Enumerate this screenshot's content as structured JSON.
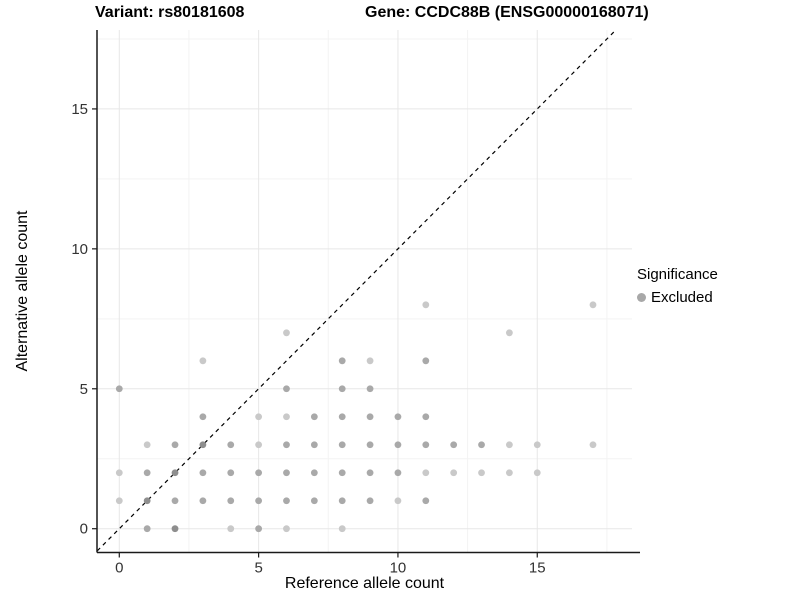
{
  "chart_data": {
    "type": "scatter",
    "titles": {
      "left": "Variant: rs80181608",
      "right": "Gene: CCDC88B (ENSG00000168071)"
    },
    "xlabel": "Reference allele count",
    "ylabel": "Alternative allele count",
    "xlim": [
      -0.8,
      18.4
    ],
    "ylim": [
      -0.85,
      17.82
    ],
    "xticks": [
      0,
      5,
      10,
      15
    ],
    "yticks": [
      0,
      5,
      10,
      15
    ],
    "xminor": [
      2.5,
      7.5,
      12.5,
      17.5
    ],
    "yminor": [
      2.5,
      7.5,
      12.5,
      17.5
    ],
    "grid": {
      "major_color": "#e7e7e7",
      "minor_color": "#f3f3f3"
    },
    "axis_color": "#1a1a1a",
    "tick_label_color": "#333333",
    "identity_line": {
      "style": "dashed",
      "color": "#000000",
      "from": [
        -0.79,
        -0.79
      ],
      "to": [
        17.82,
        17.82
      ]
    },
    "legend": {
      "title": "Significance",
      "entries": [
        {
          "label": "Excluded",
          "color": "#a8a8a8"
        }
      ]
    },
    "point_colors": {
      "1": "#c9c9c9",
      "2": "#a9a9a9",
      "3": "#8e8e8e"
    },
    "point_radius": 3.4,
    "series": [
      {
        "name": "Excluded",
        "points": [
          [
            1,
            0,
            2
          ],
          [
            2,
            0,
            3
          ],
          [
            4,
            0,
            1
          ],
          [
            5,
            0,
            2
          ],
          [
            6,
            0,
            1
          ],
          [
            8,
            0,
            1
          ],
          [
            0,
            1,
            1
          ],
          [
            1,
            1,
            3
          ],
          [
            2,
            1,
            2
          ],
          [
            3,
            1,
            2
          ],
          [
            4,
            1,
            2
          ],
          [
            5,
            1,
            2
          ],
          [
            6,
            1,
            2
          ],
          [
            7,
            1,
            2
          ],
          [
            8,
            1,
            2
          ],
          [
            9,
            1,
            2
          ],
          [
            10,
            1,
            1
          ],
          [
            11,
            1,
            2
          ],
          [
            0,
            2,
            1
          ],
          [
            1,
            2,
            2
          ],
          [
            2,
            2,
            3
          ],
          [
            3,
            2,
            2
          ],
          [
            4,
            2,
            2
          ],
          [
            5,
            2,
            2
          ],
          [
            6,
            2,
            2
          ],
          [
            7,
            2,
            2
          ],
          [
            8,
            2,
            2
          ],
          [
            9,
            2,
            2
          ],
          [
            10,
            2,
            2
          ],
          [
            11,
            2,
            1
          ],
          [
            12,
            2,
            1
          ],
          [
            13,
            2,
            1
          ],
          [
            14,
            2,
            1
          ],
          [
            15,
            2,
            1
          ],
          [
            1,
            3,
            1
          ],
          [
            2,
            3,
            2
          ],
          [
            3,
            3,
            3
          ],
          [
            4,
            3,
            2
          ],
          [
            5,
            3,
            1
          ],
          [
            6,
            3,
            2
          ],
          [
            7,
            3,
            2
          ],
          [
            8,
            3,
            2
          ],
          [
            9,
            3,
            2
          ],
          [
            10,
            3,
            2
          ],
          [
            11,
            3,
            2
          ],
          [
            12,
            3,
            2
          ],
          [
            13,
            3,
            2
          ],
          [
            14,
            3,
            1
          ],
          [
            15,
            3,
            1
          ],
          [
            17,
            3,
            1
          ],
          [
            3,
            4,
            2
          ],
          [
            5,
            4,
            1
          ],
          [
            6,
            4,
            1
          ],
          [
            7,
            4,
            2
          ],
          [
            8,
            4,
            2
          ],
          [
            9,
            4,
            2
          ],
          [
            10,
            4,
            2
          ],
          [
            11,
            4,
            2
          ],
          [
            0,
            5,
            2
          ],
          [
            6,
            5,
            2
          ],
          [
            8,
            5,
            2
          ],
          [
            9,
            5,
            2
          ],
          [
            3,
            6,
            1
          ],
          [
            8,
            6,
            2
          ],
          [
            9,
            6,
            1
          ],
          [
            11,
            6,
            2
          ],
          [
            6,
            7,
            1
          ],
          [
            14,
            7,
            1
          ],
          [
            11,
            8,
            1
          ],
          [
            17,
            8,
            1
          ]
        ]
      }
    ]
  }
}
